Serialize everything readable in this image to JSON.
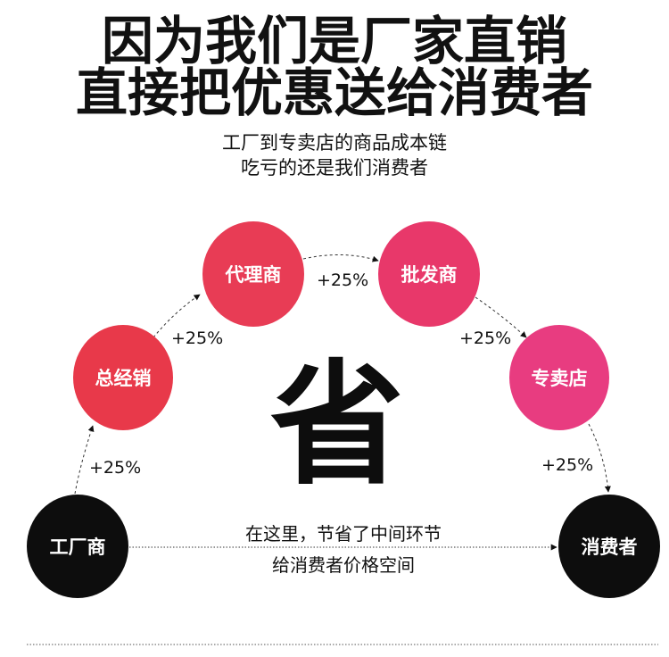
{
  "title": [
    "因为我们是厂家直销",
    "直接把优惠送给消费者"
  ],
  "subtitle": [
    "工厂到专卖店的商品成本链",
    "吃亏的还是我们消费者"
  ],
  "nodes": [
    {
      "label": "工厂商",
      "color": "#0d0d0d"
    },
    {
      "label": "总经销",
      "color": "#e8394a"
    },
    {
      "label": "代理商",
      "color": "#e83c55"
    },
    {
      "label": "批发商",
      "color": "#e8386a"
    },
    {
      "label": "专卖店",
      "color": "#e83c80"
    },
    {
      "label": "消费者",
      "color": "#0d0d0d"
    }
  ],
  "markups": [
    "+25%",
    "+25%",
    "+25%",
    "+25%",
    "+25%"
  ],
  "center_char": "省",
  "middle_text": [
    "在这里，节省了中间环节",
    "给消费者价格空间"
  ]
}
